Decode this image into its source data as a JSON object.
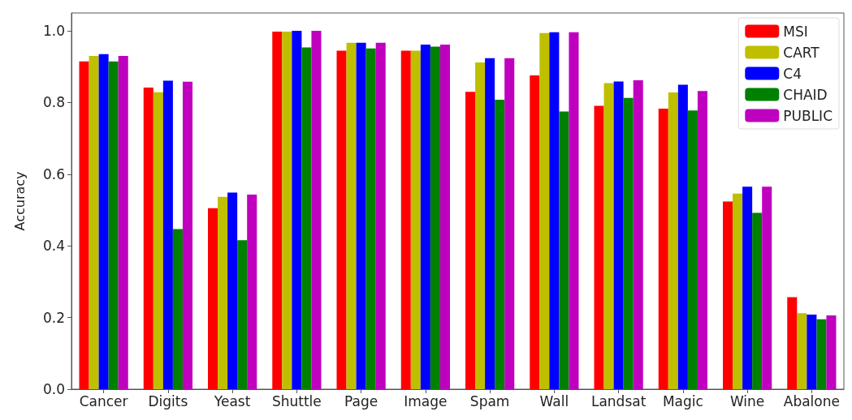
{
  "chart_data": {
    "type": "bar",
    "ylabel": "Accuracy",
    "categories": [
      "Cancer",
      "Digits",
      "Yeast",
      "Shuttle",
      "Page",
      "Image",
      "Spam",
      "Wall",
      "Landsat",
      "Magic",
      "Wine",
      "Abalone"
    ],
    "series": [
      {
        "name": "MSI",
        "color": "#ff0000",
        "values": [
          0.915,
          0.842,
          0.505,
          0.998,
          0.945,
          0.945,
          0.83,
          0.876,
          0.791,
          0.783,
          0.524,
          0.257
        ]
      },
      {
        "name": "CART",
        "color": "#bfbf00",
        "values": [
          0.93,
          0.829,
          0.537,
          0.998,
          0.967,
          0.945,
          0.912,
          0.994,
          0.854,
          0.828,
          0.546,
          0.212
        ]
      },
      {
        "name": "C4",
        "color": "#0000ff",
        "values": [
          0.935,
          0.861,
          0.549,
          1.0,
          0.967,
          0.962,
          0.924,
          0.996,
          0.859,
          0.85,
          0.565,
          0.208
        ]
      },
      {
        "name": "CHAID",
        "color": "#008000",
        "values": [
          0.915,
          0.447,
          0.416,
          0.954,
          0.951,
          0.956,
          0.808,
          0.775,
          0.813,
          0.778,
          0.492,
          0.195
        ]
      },
      {
        "name": "PUBLIC",
        "color": "#bf00bf",
        "values": [
          0.93,
          0.858,
          0.543,
          1.0,
          0.967,
          0.962,
          0.924,
          0.996,
          0.862,
          0.832,
          0.565,
          0.206
        ]
      }
    ],
    "ylim": [
      0,
      1.05
    ],
    "yticks": [
      {
        "value": 0,
        "label": "0.0"
      },
      0.2,
      0.4,
      0.6,
      0.8,
      {
        "value": 1,
        "label": "1.0"
      }
    ],
    "grid": false,
    "legend": "top right"
  }
}
